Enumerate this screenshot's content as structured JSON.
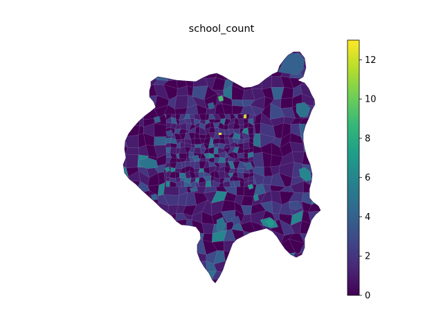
{
  "map": {
    "title": "school_count",
    "variable": "school_count",
    "colormap": "viridis",
    "colormap_stops": [
      "#440154",
      "#482878",
      "#3e4a89",
      "#31688e",
      "#26828e",
      "#1f9e89",
      "#35b779",
      "#6ece58",
      "#b5de2b",
      "#fde725"
    ],
    "boundary_color": "#bfa9d6",
    "region_count_approx": 1000
  },
  "colorbar": {
    "vmin": 0,
    "vmax": 13,
    "ticks": [
      {
        "value": 0,
        "label": "0"
      },
      {
        "value": 2,
        "label": "2"
      },
      {
        "value": 4,
        "label": "4"
      },
      {
        "value": 6,
        "label": "6"
      },
      {
        "value": 8,
        "label": "8"
      },
      {
        "value": 10,
        "label": "10"
      },
      {
        "value": 12,
        "label": "12"
      }
    ]
  }
}
